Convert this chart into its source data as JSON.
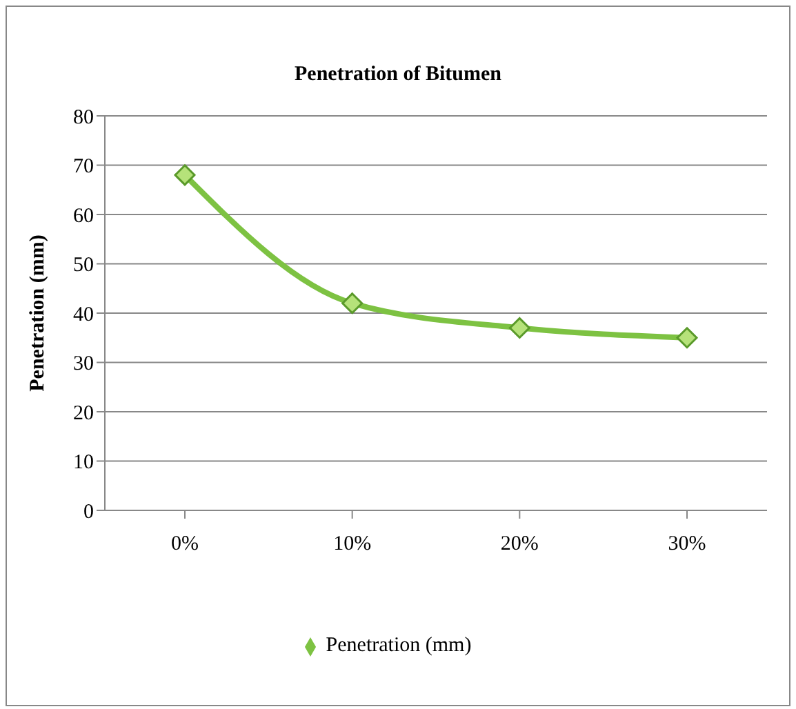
{
  "chart_data": {
    "type": "line",
    "title": "Penetration of Bitumen",
    "ylabel": "Penetration (mm)",
    "categories": [
      "0%",
      "10%",
      "20%",
      "30%"
    ],
    "series": [
      {
        "name": "Penetration (mm)",
        "color": "#7dc242",
        "values": [
          68,
          42,
          37,
          35
        ]
      }
    ],
    "ylim": [
      0,
      80
    ],
    "yticks": [
      0,
      10,
      20,
      30,
      40,
      50,
      60,
      70,
      80
    ],
    "grid": "y",
    "legend": "bottom",
    "marker": "diamond",
    "line_style": "solid"
  }
}
